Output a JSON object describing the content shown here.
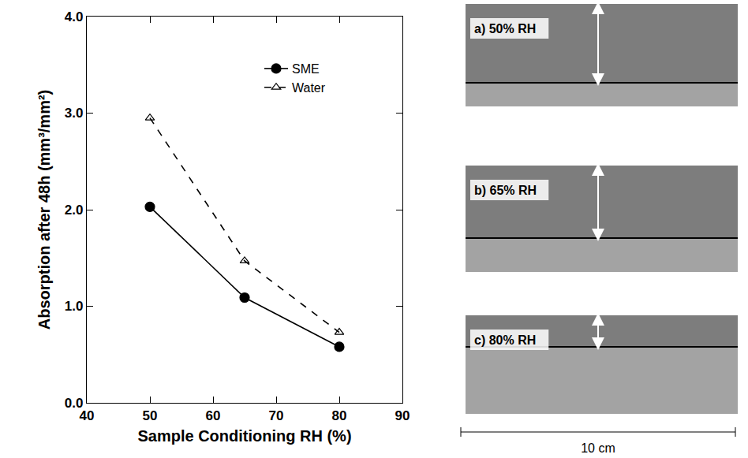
{
  "chart_data": {
    "type": "line",
    "xlabel": "Sample Conditioning RH (%)",
    "ylabel": "Absorption after 48h (mm³/mm²)",
    "x": [
      50,
      65,
      80
    ],
    "series": [
      {
        "name": "SME",
        "color": "#000000",
        "marker": "circle",
        "line_style": "solid",
        "values": [
          2.03,
          1.09,
          0.58
        ]
      },
      {
        "name": "Water",
        "color": "#000000",
        "marker": "triangle-up-open",
        "line_style": "dash",
        "values": [
          2.95,
          1.47,
          0.73
        ]
      }
    ],
    "xlim": [
      40,
      90
    ],
    "xticks": [
      40,
      50,
      60,
      70,
      80,
      90
    ],
    "ylim": [
      0,
      4
    ],
    "yticks": [
      {
        "value": 0,
        "label": "0.0"
      },
      {
        "value": 1,
        "label": "1.0"
      },
      {
        "value": 2,
        "label": "2.0"
      },
      {
        "value": 3,
        "label": "3.0"
      },
      {
        "value": 4,
        "label": "4.0"
      }
    ],
    "grid": false,
    "legend": "upper right"
  },
  "images": [
    {
      "label": "a) 50% RH"
    },
    {
      "label": "b) 65% RH"
    },
    {
      "label": "c) 80% RH"
    }
  ],
  "scale_label": "10 cm"
}
